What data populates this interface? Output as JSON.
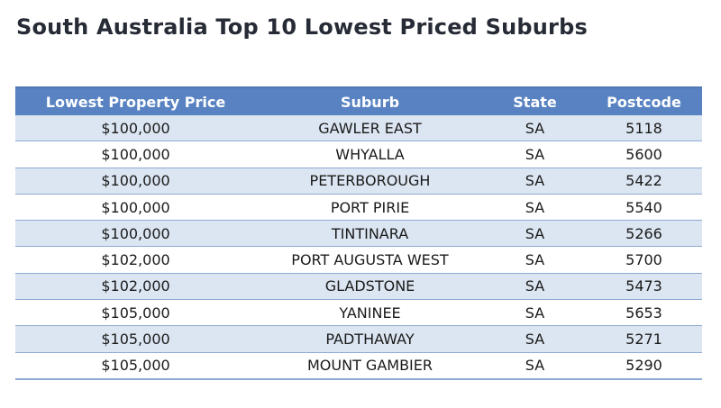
{
  "title": "South Australia Top 10 Lowest Priced Suburbs",
  "table": {
    "headers": [
      "Lowest Property Price",
      "Suburb",
      "State",
      "Postcode"
    ],
    "rows": [
      [
        "$100,000",
        "GAWLER EAST",
        "SA",
        "5118"
      ],
      [
        "$100,000",
        "WHYALLA",
        "SA",
        "5600"
      ],
      [
        "$100,000",
        "PETERBOROUGH",
        "SA",
        "5422"
      ],
      [
        "$100,000",
        "PORT PIRIE",
        "SA",
        "5540"
      ],
      [
        "$100,000",
        "TINTINARA",
        "SA",
        "5266"
      ],
      [
        "$102,000",
        "PORT AUGUSTA WEST",
        "SA",
        "5700"
      ],
      [
        "$102,000",
        "GLADSTONE",
        "SA",
        "5473"
      ],
      [
        "$105,000",
        "YANINEE",
        "SA",
        "5653"
      ],
      [
        "$105,000",
        "PADTHAWAY",
        "SA",
        "5271"
      ],
      [
        "$105,000",
        "MOUNT GAMBIER",
        "SA",
        "5290"
      ]
    ]
  },
  "colors": {
    "header_background": "#5882c1",
    "header_text": "#ffffff",
    "row_band": "#dce6f2",
    "row_plain": "#ffffff",
    "row_border": "#8eaad4",
    "title_text": "#262b36"
  }
}
